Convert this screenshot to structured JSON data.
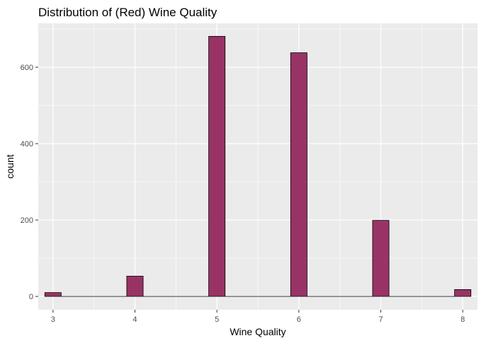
{
  "chart_data": {
    "type": "bar",
    "title": "Distribution of (Red) Wine Quality",
    "xlabel": "Wine Quality",
    "ylabel": "count",
    "bins": [
      {
        "x_min": 2.9,
        "x_max": 3.1,
        "count": 10
      },
      {
        "x_min": 3.9,
        "x_max": 4.1,
        "count": 53
      },
      {
        "x_min": 4.9,
        "x_max": 5.1,
        "count": 681
      },
      {
        "x_min": 5.9,
        "x_max": 6.1,
        "count": 638
      },
      {
        "x_min": 6.9,
        "x_max": 7.1,
        "count": 199
      },
      {
        "x_min": 7.9,
        "x_max": 8.1,
        "count": 18
      }
    ],
    "x_range": [
      2.82,
      8.18
    ],
    "y_range": [
      -35,
      715
    ],
    "xticks": [
      3,
      4,
      5,
      6,
      7,
      8
    ],
    "xtick_labels": [
      "3",
      "4",
      "5",
      "6",
      "7",
      "8"
    ],
    "yticks": [
      0,
      200,
      400,
      600
    ],
    "ytick_labels": [
      "0",
      "200",
      "400",
      "600"
    ],
    "fill_color": "#993366",
    "outline_color": "#000000",
    "panel_background": "#ebebeb",
    "grid_color": "#ffffff",
    "grid": true,
    "legend": "none"
  }
}
